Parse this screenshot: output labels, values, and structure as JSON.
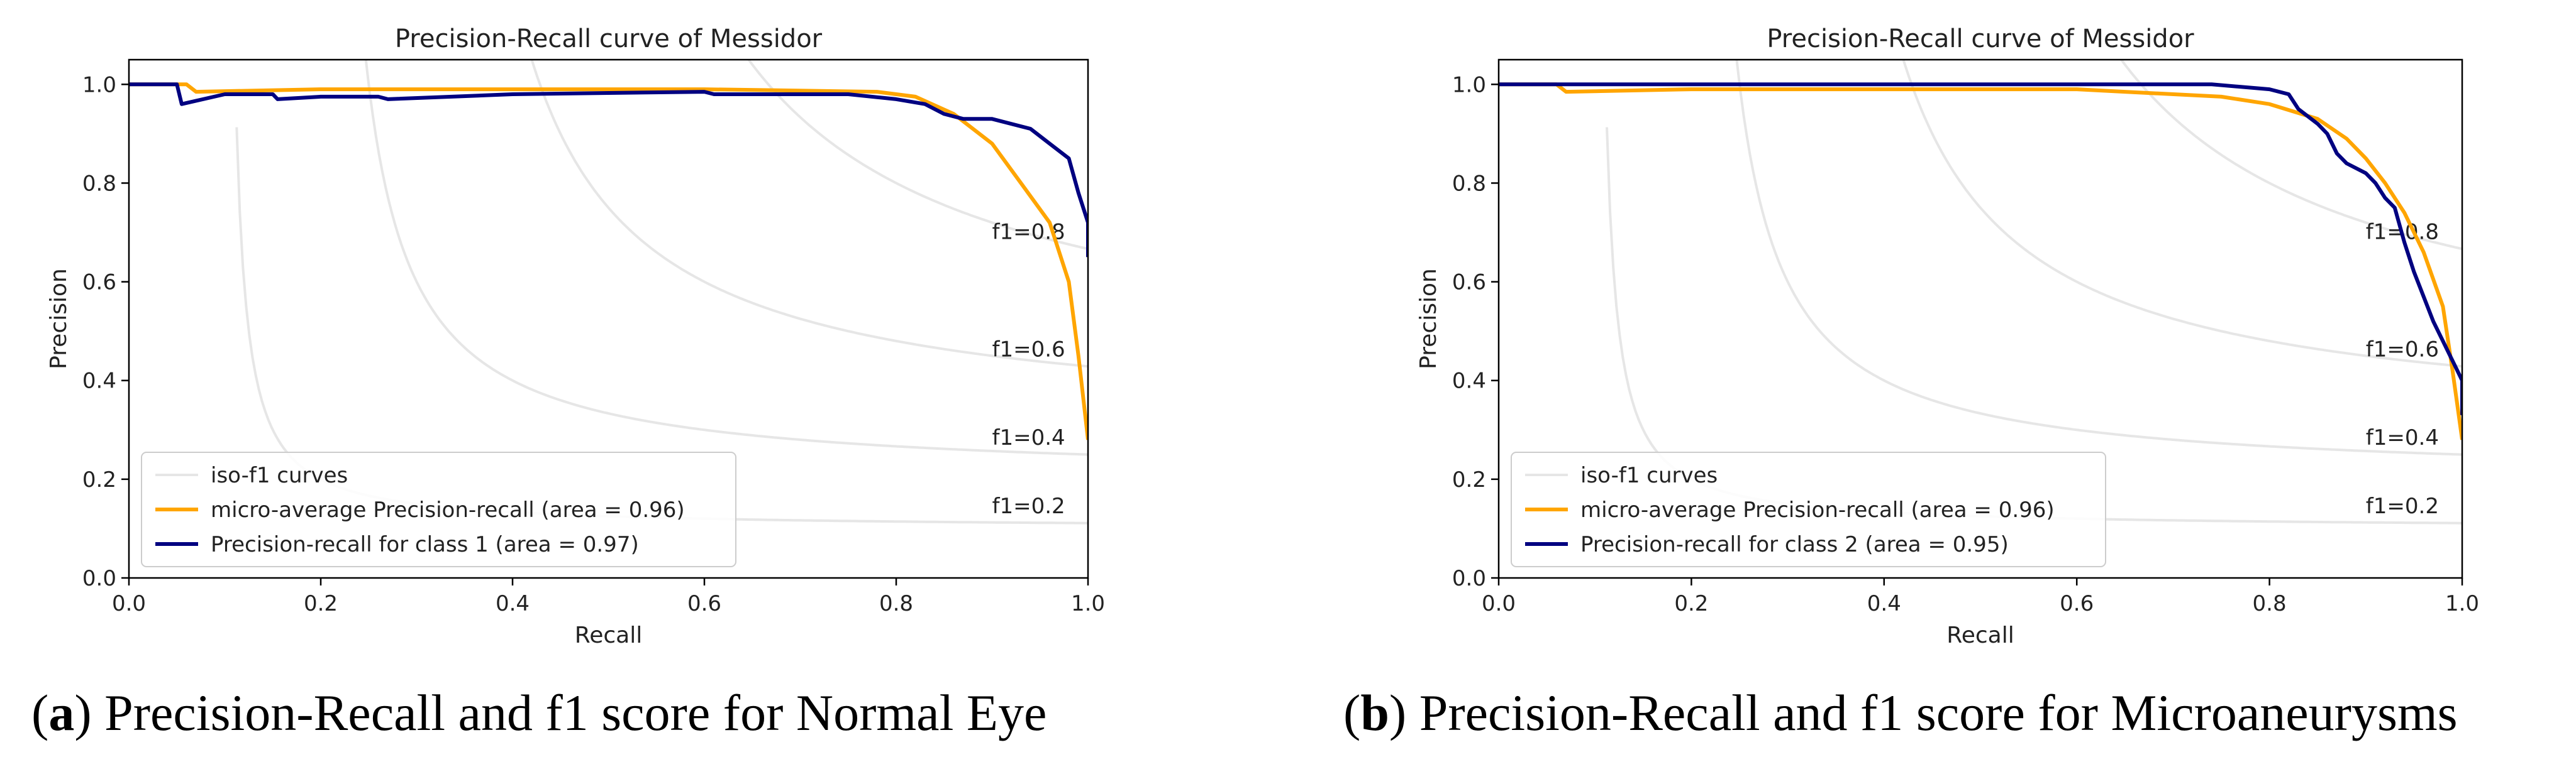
{
  "captions": [
    {
      "letter": "a",
      "text": ") Precision-Recall and f1 score for Normal Eye"
    },
    {
      "letter": "b",
      "text": ") Precision-Recall and f1 score for Microaneurysms"
    }
  ],
  "chart_data": [
    {
      "type": "line",
      "title": "Precision-Recall curve of Messidor",
      "xlabel": "Recall",
      "ylabel": "Precision",
      "xlim": [
        0.0,
        1.0
      ],
      "ylim": [
        0.0,
        1.05
      ],
      "xticks": [
        "0.0",
        "0.2",
        "0.4",
        "0.6",
        "0.8",
        "1.0"
      ],
      "yticks": [
        "0.0",
        "0.2",
        "0.4",
        "0.6",
        "0.8",
        "1.0"
      ],
      "grid": false,
      "legend_position": "lower-left",
      "iso_f1": [
        0.2,
        0.4,
        0.6,
        0.8
      ],
      "iso_labels": [
        "f1=0.2",
        "f1=0.4",
        "f1=0.6",
        "f1=0.8"
      ],
      "series": [
        {
          "name": "iso-f1 curves",
          "color": "#e6e6e6",
          "kind": "iso"
        },
        {
          "name": "micro-average Precision-recall (area = 0.96)",
          "color": "#ffa500",
          "x": [
            0.0,
            0.06,
            0.07,
            0.2,
            0.4,
            0.6,
            0.78,
            0.82,
            0.86,
            0.9,
            0.93,
            0.96,
            0.98,
            0.99,
            1.0
          ],
          "y": [
            1.0,
            1.0,
            0.985,
            0.99,
            0.99,
            0.99,
            0.985,
            0.975,
            0.94,
            0.88,
            0.8,
            0.72,
            0.6,
            0.45,
            0.28
          ]
        },
        {
          "name": "Precision-recall for class 1 (area = 0.97)",
          "color": "#000080",
          "x": [
            0.0,
            0.05,
            0.055,
            0.1,
            0.15,
            0.155,
            0.2,
            0.26,
            0.27,
            0.4,
            0.6,
            0.61,
            0.75,
            0.8,
            0.83,
            0.85,
            0.87,
            0.9,
            0.94,
            0.96,
            0.98,
            0.99,
            1.0,
            1.0
          ],
          "y": [
            1.0,
            1.0,
            0.96,
            0.98,
            0.98,
            0.97,
            0.975,
            0.975,
            0.97,
            0.98,
            0.985,
            0.98,
            0.98,
            0.97,
            0.96,
            0.94,
            0.93,
            0.93,
            0.91,
            0.88,
            0.85,
            0.78,
            0.72,
            0.65
          ]
        }
      ]
    },
    {
      "type": "line",
      "title": "Precision-Recall curve of Messidor",
      "xlabel": "Recall",
      "ylabel": "Precision",
      "xlim": [
        0.0,
        1.0
      ],
      "ylim": [
        0.0,
        1.05
      ],
      "xticks": [
        "0.0",
        "0.2",
        "0.4",
        "0.6",
        "0.8",
        "1.0"
      ],
      "yticks": [
        "0.0",
        "0.2",
        "0.4",
        "0.6",
        "0.8",
        "1.0"
      ],
      "grid": false,
      "legend_position": "lower-left",
      "iso_f1": [
        0.2,
        0.4,
        0.6,
        0.8
      ],
      "iso_labels": [
        "f1=0.2",
        "f1=0.4",
        "f1=0.6",
        "f1=0.8"
      ],
      "series": [
        {
          "name": "iso-f1 curves",
          "color": "#e6e6e6",
          "kind": "iso"
        },
        {
          "name": "micro-average Precision-recall (area = 0.96)",
          "color": "#ffa500",
          "x": [
            0.0,
            0.06,
            0.07,
            0.2,
            0.4,
            0.6,
            0.65,
            0.75,
            0.8,
            0.85,
            0.88,
            0.9,
            0.92,
            0.94,
            0.96,
            0.98,
            0.99,
            1.0
          ],
          "y": [
            1.0,
            1.0,
            0.985,
            0.99,
            0.99,
            0.99,
            0.985,
            0.975,
            0.96,
            0.93,
            0.89,
            0.85,
            0.8,
            0.74,
            0.66,
            0.55,
            0.42,
            0.28
          ]
        },
        {
          "name": "Precision-recall for class 2 (area = 0.95)",
          "color": "#000080",
          "x": [
            0.0,
            0.5,
            0.74,
            0.8,
            0.82,
            0.83,
            0.85,
            0.86,
            0.87,
            0.88,
            0.9,
            0.91,
            0.92,
            0.93,
            0.94,
            0.95,
            0.96,
            0.97,
            0.98,
            0.99,
            1.0,
            1.0
          ],
          "y": [
            1.0,
            1.0,
            1.0,
            0.99,
            0.98,
            0.95,
            0.92,
            0.9,
            0.86,
            0.84,
            0.82,
            0.8,
            0.77,
            0.75,
            0.68,
            0.62,
            0.57,
            0.52,
            0.48,
            0.44,
            0.4,
            0.33
          ]
        }
      ]
    }
  ]
}
